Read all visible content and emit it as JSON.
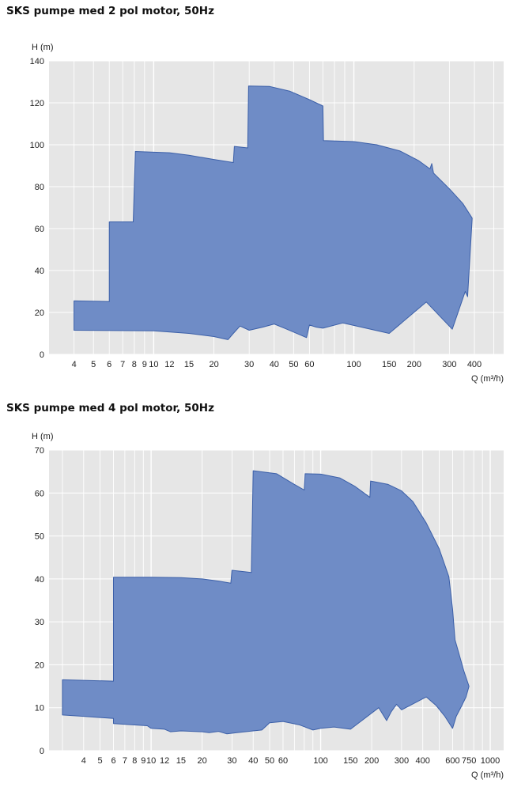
{
  "chart_data": [
    {
      "type": "area",
      "title": "SKS pumpe med 2 pol motor, 50Hz",
      "xlabel": "Q (m³/h)",
      "ylabel": "H (m)",
      "xscale": "log",
      "xlim": [
        3,
        560
      ],
      "ylim": [
        0,
        140
      ],
      "grid": true,
      "x_ticks": [
        4,
        5,
        6,
        7,
        8,
        9,
        10,
        12,
        15,
        20,
        30,
        40,
        50,
        60,
        100,
        150,
        200,
        300,
        400
      ],
      "x_tick_labels": [
        "4",
        "5",
        "6",
        "7",
        "8",
        "9",
        "10",
        "12",
        "15",
        "20",
        "30",
        "40",
        "50",
        "60",
        "100",
        "150",
        "200",
        "300",
        "400"
      ],
      "y_ticks": [
        0,
        20,
        40,
        60,
        80,
        100,
        120,
        140
      ],
      "fill_color": "#6f8cc6",
      "edge_color": "#3b5fa8",
      "background_color": "#e6e6e6",
      "series": [
        {
          "points": [
            [
              4,
              11.5
            ],
            [
              4,
              25.5
            ],
            [
              6,
              25.2
            ],
            [
              6,
              63.2
            ],
            [
              7.9,
              63.2
            ],
            [
              8.1,
              96.8
            ],
            [
              12,
              96.2
            ],
            [
              15,
              95
            ],
            [
              20,
              93
            ],
            [
              25,
              91.5
            ],
            [
              25.3,
              99.2
            ],
            [
              29.5,
              98.5
            ],
            [
              29.8,
              128
            ],
            [
              38,
              127.8
            ],
            [
              48,
              125.5
            ],
            [
              60,
              121.5
            ],
            [
              70,
              118.5
            ],
            [
              70.5,
              102
            ],
            [
              100,
              101.5
            ],
            [
              130,
              100
            ],
            [
              170,
              97
            ],
            [
              210,
              92.5
            ],
            [
              240,
              88.5
            ],
            [
              245,
              91
            ],
            [
              250,
              86.5
            ],
            [
              300,
              79
            ],
            [
              350,
              72
            ],
            [
              390,
              65
            ],
            [
              370,
              27.5
            ],
            [
              360,
              30
            ],
            [
              310,
              12
            ],
            [
              230,
              25
            ],
            [
              150,
              10
            ],
            [
              88,
              15
            ],
            [
              70,
              12.5
            ],
            [
              65,
              13
            ],
            [
              60,
              14
            ],
            [
              58,
              8
            ],
            [
              45,
              12.5
            ],
            [
              40,
              14.5
            ],
            [
              35,
              13
            ],
            [
              30,
              11.5
            ],
            [
              27,
              13.5
            ],
            [
              25,
              10
            ],
            [
              23.5,
              7
            ],
            [
              20,
              8.5
            ],
            [
              15,
              10
            ],
            [
              10,
              11.2
            ],
            [
              4,
              11.5
            ]
          ]
        }
      ]
    },
    {
      "type": "area",
      "title": "SKS pumpe med 4 pol motor, 50Hz",
      "xlabel": "Q (m³/h)",
      "ylabel": "H (m)",
      "xscale": "log",
      "xlim": [
        2.5,
        1200
      ],
      "ylim": [
        0,
        70
      ],
      "grid": true,
      "x_ticks": [
        4,
        5,
        6,
        7,
        8,
        9,
        10,
        12,
        15,
        20,
        30,
        40,
        50,
        60,
        100,
        150,
        200,
        300,
        400,
        600,
        750,
        1000
      ],
      "x_tick_labels": [
        "4",
        "5",
        "6",
        "7",
        "8",
        "9",
        "10",
        "12",
        "15",
        "20",
        "30",
        "40",
        "50",
        "60",
        "100",
        "150",
        "200",
        "300",
        "400",
        "600",
        "750",
        "1000"
      ],
      "y_ticks": [
        0,
        10,
        20,
        30,
        40,
        50,
        60,
        70
      ],
      "fill_color": "#6f8cc6",
      "edge_color": "#3b5fa8",
      "background_color": "#e6e6e6",
      "series": [
        {
          "points": [
            [
              3,
              8.3
            ],
            [
              3,
              16.5
            ],
            [
              6,
              16.2
            ],
            [
              6,
              40.4
            ],
            [
              10,
              40.4
            ],
            [
              15,
              40.3
            ],
            [
              20,
              40
            ],
            [
              25,
              39.5
            ],
            [
              29.5,
              39
            ],
            [
              30,
              42
            ],
            [
              39,
              41.5
            ],
            [
              40,
              65.2
            ],
            [
              55,
              64.5
            ],
            [
              68,
              62.3
            ],
            [
              80,
              60.7
            ],
            [
              81,
              64.5
            ],
            [
              100,
              64.4
            ],
            [
              130,
              63.5
            ],
            [
              160,
              61.5
            ],
            [
              195,
              59
            ],
            [
              197,
              62.8
            ],
            [
              250,
              62
            ],
            [
              300,
              60.5
            ],
            [
              350,
              58
            ],
            [
              420,
              53
            ],
            [
              500,
              47
            ],
            [
              570,
              40.5
            ],
            [
              600,
              33
            ],
            [
              620,
              25.8
            ],
            [
              700,
              18.5
            ],
            [
              750,
              15
            ],
            [
              720,
              12.5
            ],
            [
              680,
              10.5
            ],
            [
              630,
              8
            ],
            [
              600,
              5.2
            ],
            [
              540,
              8
            ],
            [
              480,
              10.5
            ],
            [
              420,
              12.5
            ],
            [
              300,
              9.5
            ],
            [
              280,
              10.8
            ],
            [
              260,
              9
            ],
            [
              245,
              7
            ],
            [
              220,
              10
            ],
            [
              150,
              5
            ],
            [
              120,
              5.5
            ],
            [
              100,
              5.2
            ],
            [
              90,
              4.8
            ],
            [
              75,
              6
            ],
            [
              60,
              6.8
            ],
            [
              50,
              6.5
            ],
            [
              45,
              4.8
            ],
            [
              40,
              4.6
            ],
            [
              32,
              4.2
            ],
            [
              28,
              3.9
            ],
            [
              25,
              4.5
            ],
            [
              22,
              4.2
            ],
            [
              20,
              4.4
            ],
            [
              15,
              4.6
            ],
            [
              13,
              4.4
            ],
            [
              12,
              5
            ],
            [
              10,
              5.2
            ],
            [
              9.5,
              5.8
            ],
            [
              6,
              6.3
            ],
            [
              6,
              7.5
            ],
            [
              4,
              8
            ],
            [
              3,
              8.3
            ]
          ]
        }
      ]
    }
  ]
}
